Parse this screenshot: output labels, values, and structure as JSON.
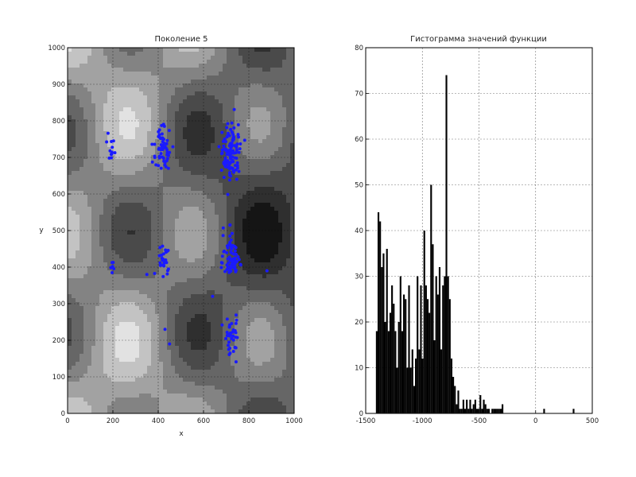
{
  "chart_data": [
    {
      "type": "contour",
      "title": "Поколение 5",
      "xlabel": "x",
      "ylabel": "y",
      "xlim": [
        0,
        1000
      ],
      "ylim": [
        0,
        1000
      ],
      "xticks": [
        0,
        200,
        400,
        600,
        800,
        1000
      ],
      "yticks": [
        0,
        100,
        200,
        300,
        400,
        500,
        600,
        700,
        800,
        900,
        1000
      ],
      "grid": true,
      "levels": 8,
      "colormap": "gray",
      "point_color": "#1a1aff",
      "clusters": [
        {
          "cx": 720,
          "cy": 710,
          "n": 110,
          "spread": 35
        },
        {
          "cx": 420,
          "cy": 720,
          "n": 60,
          "spread": 28
        },
        {
          "cx": 720,
          "cy": 430,
          "n": 70,
          "spread": 30
        },
        {
          "cx": 720,
          "cy": 210,
          "n": 40,
          "spread": 25
        },
        {
          "cx": 420,
          "cy": 410,
          "n": 25,
          "spread": 25
        },
        {
          "cx": 200,
          "cy": 720,
          "n": 12,
          "spread": 15
        },
        {
          "cx": 200,
          "cy": 400,
          "n": 6,
          "spread": 12
        }
      ],
      "extra_points": [
        [
          350,
          380
        ],
        [
          640,
          320
        ],
        [
          880,
          390
        ],
        [
          430,
          230
        ],
        [
          450,
          190
        ]
      ]
    },
    {
      "type": "bar",
      "title": "Гистограмма значений функции",
      "xlim": [
        -1500,
        500
      ],
      "ylim": [
        0,
        80
      ],
      "xticks": [
        -1500,
        -1000,
        -500,
        0,
        500
      ],
      "yticks": [
        0,
        10,
        20,
        30,
        40,
        50,
        60,
        70,
        80
      ],
      "grid": true,
      "bar_color": "#000000",
      "bin_width": 15,
      "bins_start": -1410,
      "values": [
        18,
        44,
        42,
        32,
        35,
        20,
        36,
        18,
        22,
        28,
        24,
        18,
        10,
        20,
        30,
        18,
        26,
        25,
        10,
        28,
        10,
        14,
        6,
        12,
        30,
        14,
        28,
        12,
        40,
        28,
        25,
        22,
        50,
        37,
        16,
        30,
        26,
        32,
        14,
        28,
        30,
        74,
        30,
        25,
        12,
        8,
        6,
        2,
        5,
        1,
        1,
        3,
        1,
        3,
        1,
        3,
        1,
        2,
        3,
        1,
        1,
        4,
        1,
        3,
        2,
        1,
        1,
        0,
        1,
        1,
        1,
        1,
        1,
        1,
        2
      ],
      "outliers": [
        [
          75,
          1
        ],
        [
          335,
          1
        ]
      ]
    }
  ]
}
